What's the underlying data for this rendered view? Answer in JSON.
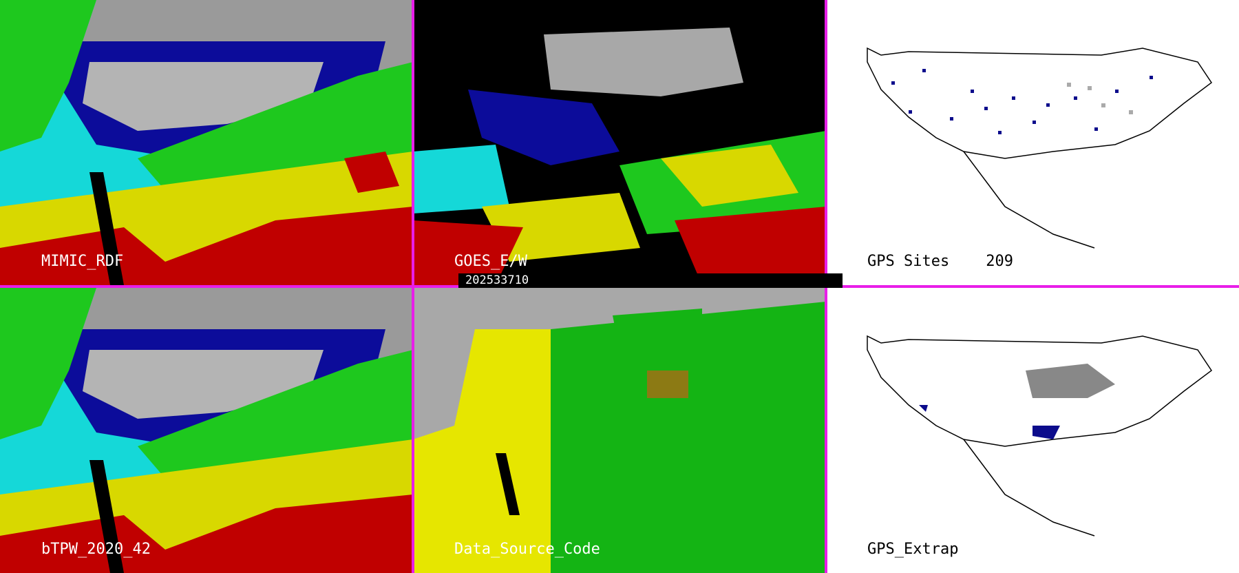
{
  "panels": {
    "top_left": {
      "label": "MIMIC_RDF"
    },
    "top_middle": {
      "label": "GOES_E/W"
    },
    "top_right": {
      "label": "GPS Sites",
      "count": "209"
    },
    "bottom_left": {
      "label": "bTPW_2020_42"
    },
    "bottom_middle": {
      "label": "Data_Source_Code"
    },
    "bottom_right": {
      "label": "GPS_Extrap"
    }
  },
  "timestamp": "202533710",
  "colors": {
    "separator": "#e81ee8",
    "tpw_scale": [
      "#aaaaaa",
      "#0a0a9c",
      "#15e0e0",
      "#1ec81e",
      "#e0e000",
      "#c80000"
    ],
    "data_source": {
      "background": "#a8a8a8",
      "satellite": "#e6e600",
      "model": "#14b414",
      "gps": "#8c7a14",
      "missing": "#000000"
    }
  }
}
